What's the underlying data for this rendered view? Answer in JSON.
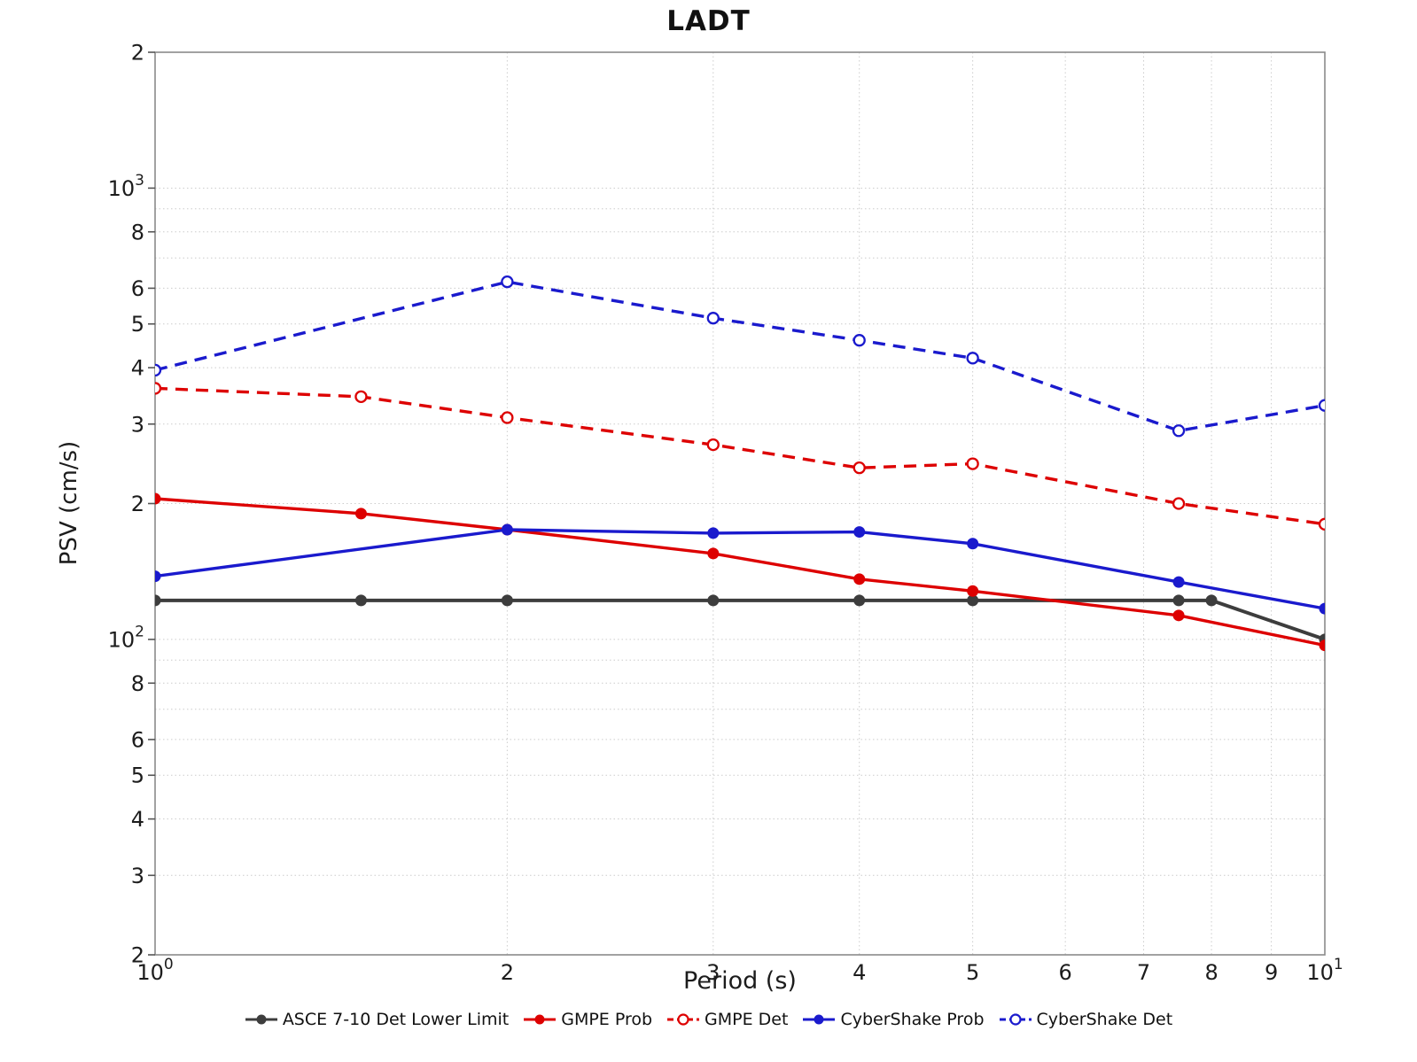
{
  "title": "LADT",
  "axes": {
    "x_label": "Period (s)",
    "y_label": "PSV (cm/s)",
    "x_scale": "log",
    "y_scale": "log",
    "x_range": [
      1,
      10
    ],
    "y_range": [
      20,
      2000
    ],
    "x_ticks": [
      {
        "v": 1,
        "base": "10",
        "sup": "0"
      },
      {
        "v": 2,
        "base": "2"
      },
      {
        "v": 3,
        "base": "3"
      },
      {
        "v": 4,
        "base": "4"
      },
      {
        "v": 5,
        "base": "5"
      },
      {
        "v": 6,
        "base": "6"
      },
      {
        "v": 7,
        "base": "7"
      },
      {
        "v": 8,
        "base": "8"
      },
      {
        "v": 9,
        "base": "9"
      },
      {
        "v": 10,
        "base": "10",
        "sup": "1"
      }
    ],
    "y_ticks": [
      {
        "v": 2000,
        "base": "2"
      },
      {
        "v": 1000,
        "base": "10",
        "sup": "3"
      },
      {
        "v": 800,
        "base": "8"
      },
      {
        "v": 600,
        "base": "6"
      },
      {
        "v": 500,
        "base": "5"
      },
      {
        "v": 400,
        "base": "4"
      },
      {
        "v": 300,
        "base": "3"
      },
      {
        "v": 200,
        "base": "2"
      },
      {
        "v": 100,
        "base": "10",
        "sup": "2"
      },
      {
        "v": 80,
        "base": "8"
      },
      {
        "v": 60,
        "base": "6"
      },
      {
        "v": 50,
        "base": "5"
      },
      {
        "v": 40,
        "base": "4"
      },
      {
        "v": 30,
        "base": "3"
      },
      {
        "v": 20,
        "base": "2"
      }
    ],
    "x_gridlines": [
      2,
      3,
      4,
      5,
      6,
      7,
      8,
      9
    ],
    "y_gridlines": [
      1000,
      900,
      800,
      700,
      600,
      500,
      400,
      300,
      200,
      100,
      90,
      80,
      70,
      60,
      50,
      40,
      30,
      20
    ]
  },
  "chart_data": {
    "type": "line",
    "title": "LADT",
    "xlabel": "Period (s)",
    "ylabel": "PSV (cm/s)",
    "x_scale": "log",
    "y_scale": "log",
    "xlim": [
      1,
      10
    ],
    "ylim": [
      20,
      2000
    ],
    "grid": true,
    "legend_position": "bottom-center",
    "series": [
      {
        "name": "ASCE 7-10 Det Lower Limit",
        "color": "#3d3d3d",
        "line_style": "solid",
        "marker": "filled-circle",
        "points": [
          [
            1,
            122
          ],
          [
            1.5,
            122
          ],
          [
            2,
            122
          ],
          [
            3,
            122
          ],
          [
            4,
            122
          ],
          [
            5,
            122
          ],
          [
            7.5,
            122
          ],
          [
            8,
            122
          ],
          [
            10,
            100
          ]
        ]
      },
      {
        "name": "GMPE Prob",
        "color": "#dd0000",
        "line_style": "solid",
        "marker": "filled-circle",
        "points": [
          [
            1,
            205
          ],
          [
            1.5,
            190
          ],
          [
            2,
            175
          ],
          [
            3,
            155
          ],
          [
            4,
            136
          ],
          [
            5,
            128
          ],
          [
            7.5,
            113
          ],
          [
            10,
            97
          ]
        ]
      },
      {
        "name": "GMPE Det",
        "color": "#dd0000",
        "line_style": "dashed",
        "marker": "open-circle",
        "points": [
          [
            1,
            360
          ],
          [
            1.5,
            345
          ],
          [
            2,
            310
          ],
          [
            3,
            270
          ],
          [
            4,
            240
          ],
          [
            5,
            245
          ],
          [
            7.5,
            200
          ],
          [
            10,
            180
          ]
        ]
      },
      {
        "name": "CyberShake Prob",
        "color": "#1a1acd",
        "line_style": "solid",
        "marker": "filled-circle",
        "points": [
          [
            1,
            138
          ],
          [
            2,
            175
          ],
          [
            3,
            172
          ],
          [
            4,
            173
          ],
          [
            5,
            163
          ],
          [
            7.5,
            134
          ],
          [
            10,
            117
          ]
        ]
      },
      {
        "name": "CyberShake Det",
        "color": "#1a1acd",
        "line_style": "dashed",
        "marker": "open-circle",
        "points": [
          [
            1,
            395
          ],
          [
            2,
            620
          ],
          [
            3,
            515
          ],
          [
            4,
            460
          ],
          [
            5,
            420
          ],
          [
            7.5,
            290
          ],
          [
            10,
            330
          ]
        ]
      }
    ]
  },
  "colors": {
    "background": "#ffffff",
    "grid": "#cccccc",
    "axis_border": "#8a8a8a",
    "tick_text": "#1c1c1c"
  }
}
